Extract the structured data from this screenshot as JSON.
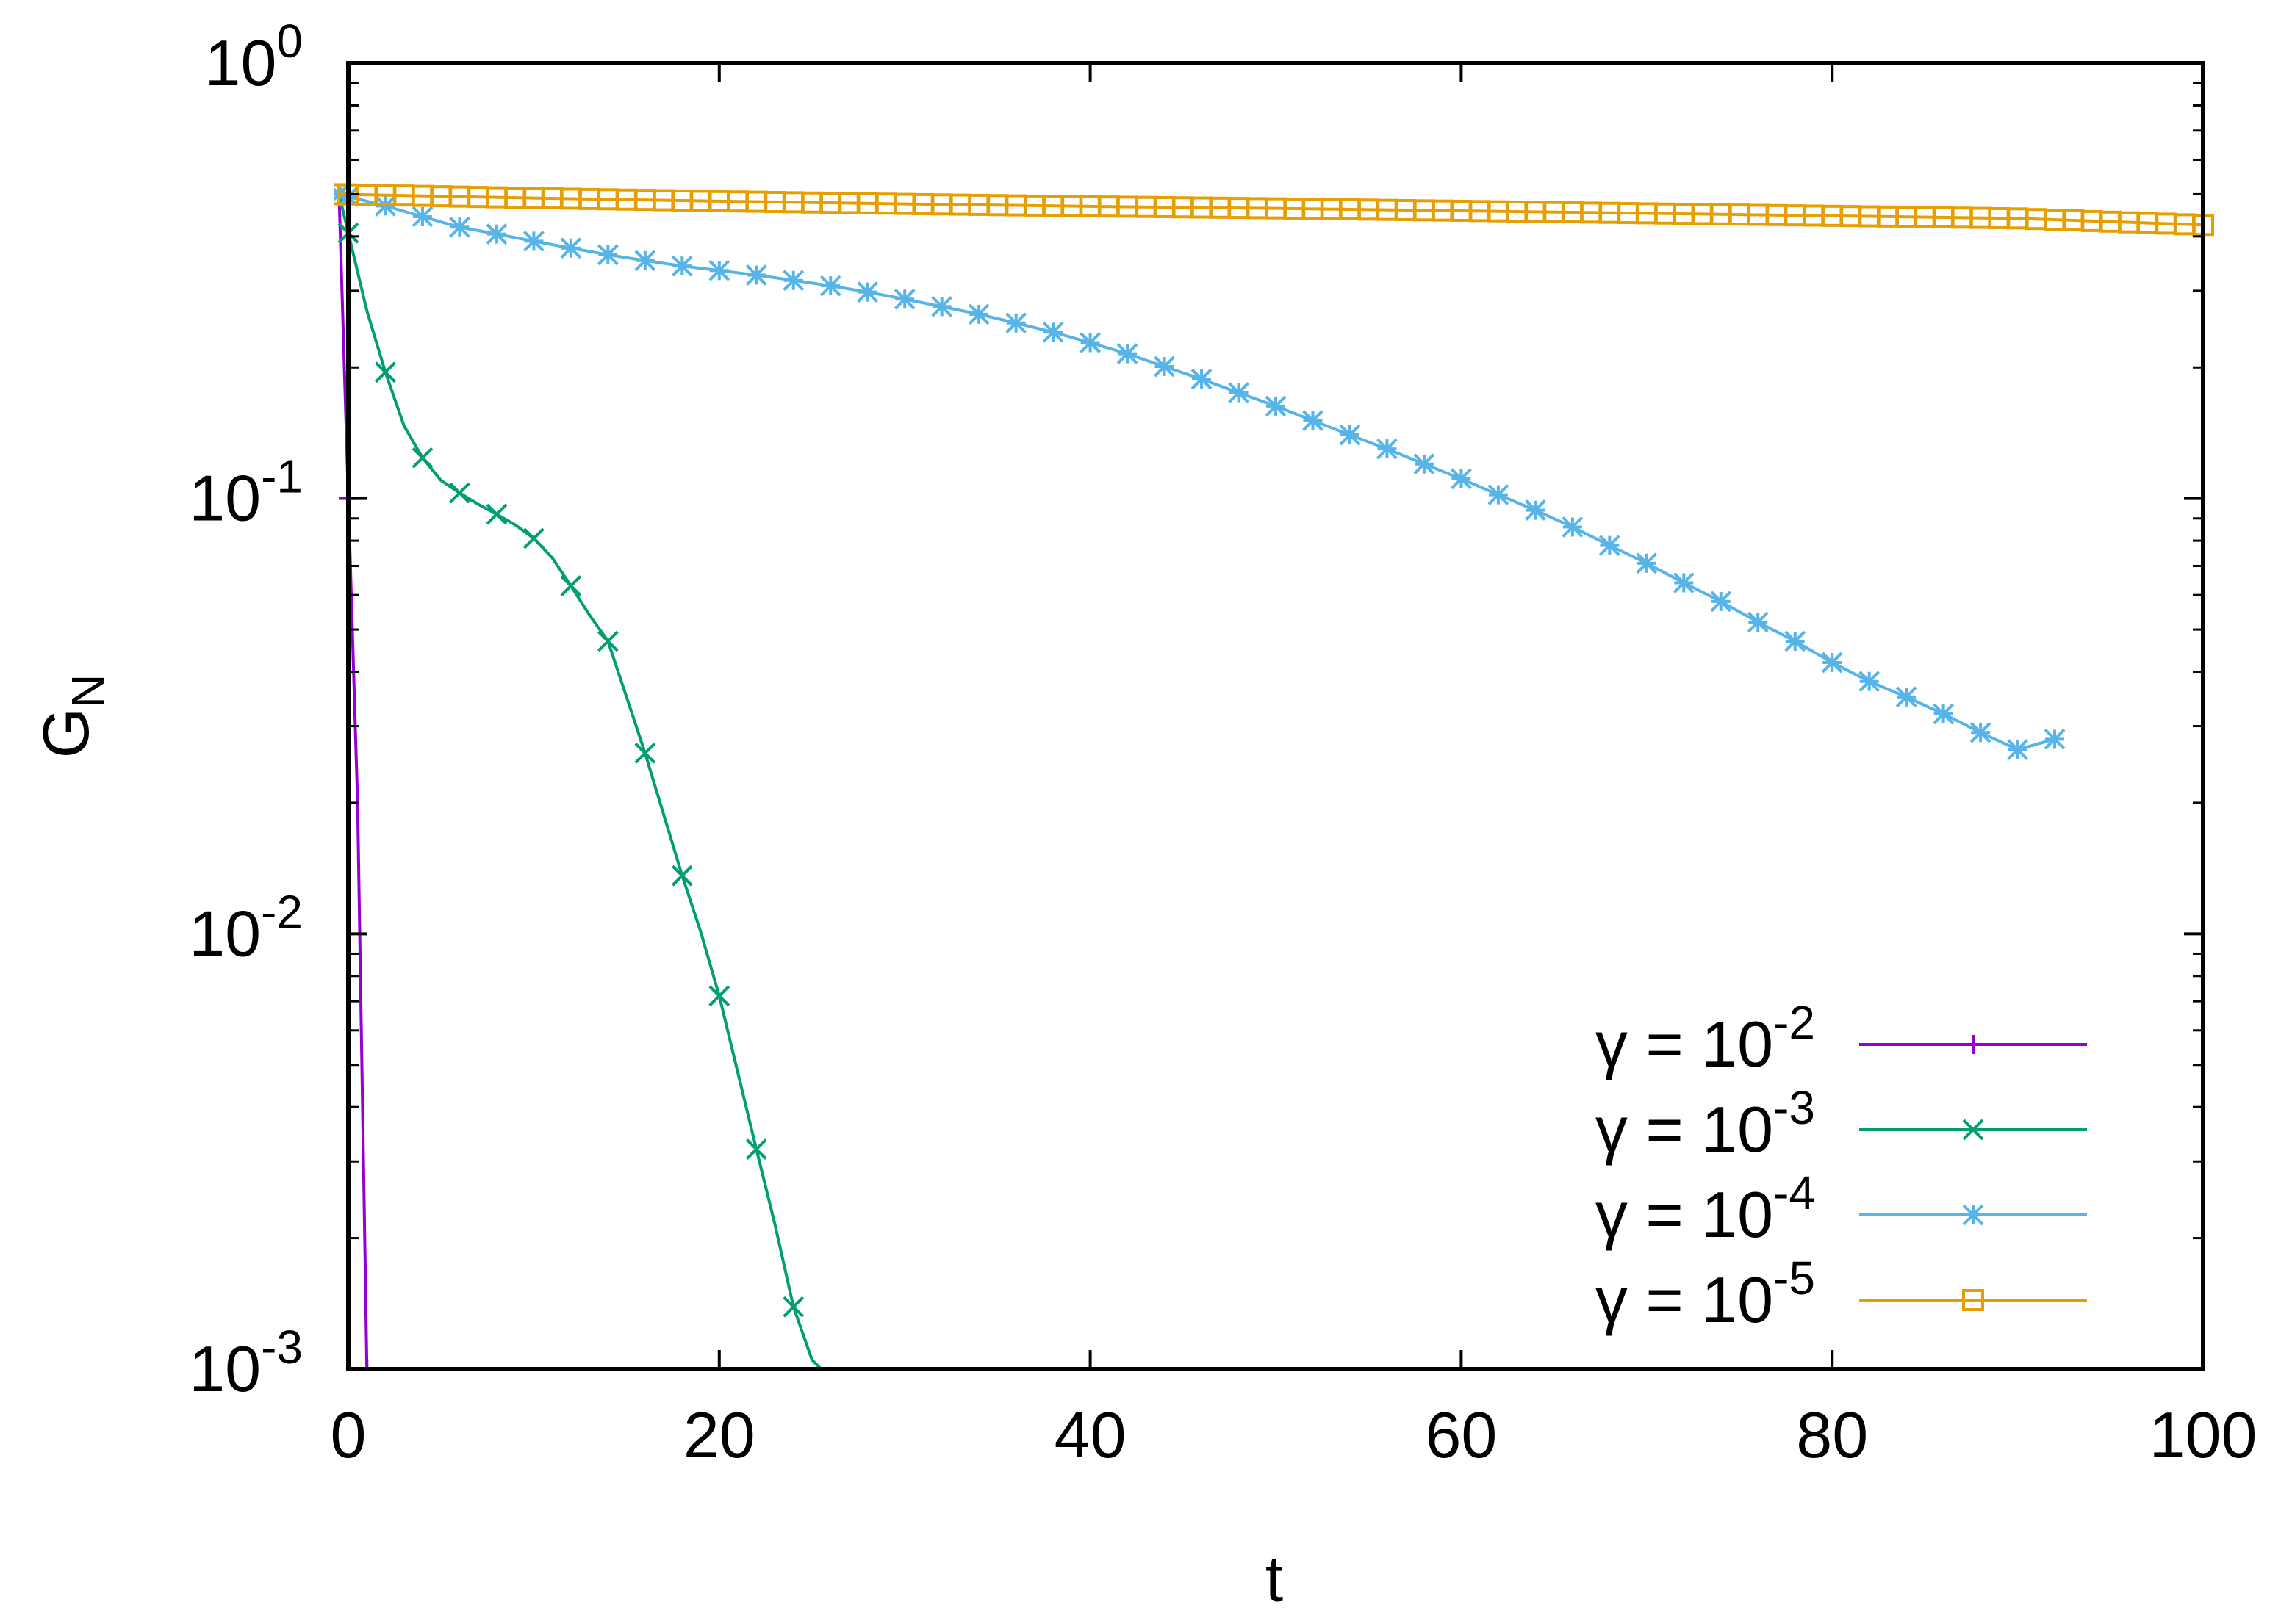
{
  "chart_data": {
    "type": "line",
    "xlabel": "t",
    "ylabel": {
      "base": "G",
      "sub": "N"
    },
    "xlim": [
      0,
      100
    ],
    "ylim": [
      0.001,
      1
    ],
    "yscale": "log",
    "grid": false,
    "legend_position": "bottom-right",
    "x_ticks": [
      "0",
      "20",
      "40",
      "60",
      "80",
      "100"
    ],
    "y_ticks": [
      {
        "base": "10",
        "exp": "-3",
        "value": 0.001
      },
      {
        "base": "10",
        "exp": "-2",
        "value": 0.01
      },
      {
        "base": "10",
        "exp": "-1",
        "value": 0.1
      },
      {
        "base": "10",
        "exp": "0",
        "value": 1
      }
    ],
    "series": [
      {
        "name": {
          "prefix": "γ = 10",
          "exp": "-2"
        },
        "color": "#9400d3",
        "marker": "plus",
        "x": [
          -0.5,
          0.5,
          1.0
        ],
        "y": [
          0.5,
          0.02,
          0.001
        ]
      },
      {
        "name": {
          "prefix": "γ = 10",
          "exp": "-3"
        },
        "color": "#009e73",
        "marker": "x",
        "x": [
          -0.5,
          1,
          2,
          3,
          4,
          5,
          6,
          7,
          8,
          9,
          10,
          11,
          12,
          13,
          14,
          15,
          16,
          17,
          18,
          19,
          20,
          21,
          22,
          23,
          24,
          25,
          25.5
        ],
        "y": [
          0.5,
          0.27,
          0.195,
          0.147,
          0.124,
          0.11,
          0.103,
          0.097,
          0.092,
          0.087,
          0.081,
          0.073,
          0.063,
          0.054,
          0.047,
          0.035,
          0.026,
          0.0188,
          0.0136,
          0.0101,
          0.0072,
          0.0048,
          0.0032,
          0.00215,
          0.00139,
          0.00105,
          0.001
        ]
      },
      {
        "name": {
          "prefix": "γ = 10",
          "exp": "-4"
        },
        "color": "#56b4e9",
        "marker": "star",
        "x": [
          -0.5,
          2,
          4,
          6,
          8,
          10,
          12,
          14,
          16,
          18,
          20,
          22,
          24,
          26,
          28,
          30,
          32,
          34,
          36,
          38,
          40,
          42,
          44,
          46,
          48,
          50,
          52,
          54,
          56,
          58,
          60,
          62,
          64,
          66,
          68,
          70,
          72,
          74,
          76,
          78,
          80,
          82,
          84,
          86,
          88,
          90,
          92
        ],
        "y": [
          0.5,
          0.47,
          0.444,
          0.42,
          0.405,
          0.39,
          0.376,
          0.363,
          0.352,
          0.342,
          0.334,
          0.326,
          0.317,
          0.308,
          0.298,
          0.287,
          0.276,
          0.265,
          0.253,
          0.241,
          0.228,
          0.215,
          0.201,
          0.188,
          0.175,
          0.163,
          0.151,
          0.14,
          0.13,
          0.12,
          0.111,
          0.102,
          0.094,
          0.086,
          0.078,
          0.071,
          0.064,
          0.058,
          0.052,
          0.047,
          0.042,
          0.038,
          0.035,
          0.032,
          0.029,
          0.0265,
          0.028
        ]
      },
      {
        "name": {
          "prefix": "γ = 10",
          "exp": "-5"
        },
        "color": "#e69f00",
        "marker": "square",
        "x": [
          -0.5,
          10,
          20,
          30,
          40,
          50,
          60,
          70,
          80,
          90,
          100
        ],
        "y": [
          0.5,
          0.49,
          0.482,
          0.475,
          0.469,
          0.464,
          0.458,
          0.452,
          0.446,
          0.44,
          0.425
        ]
      }
    ]
  }
}
